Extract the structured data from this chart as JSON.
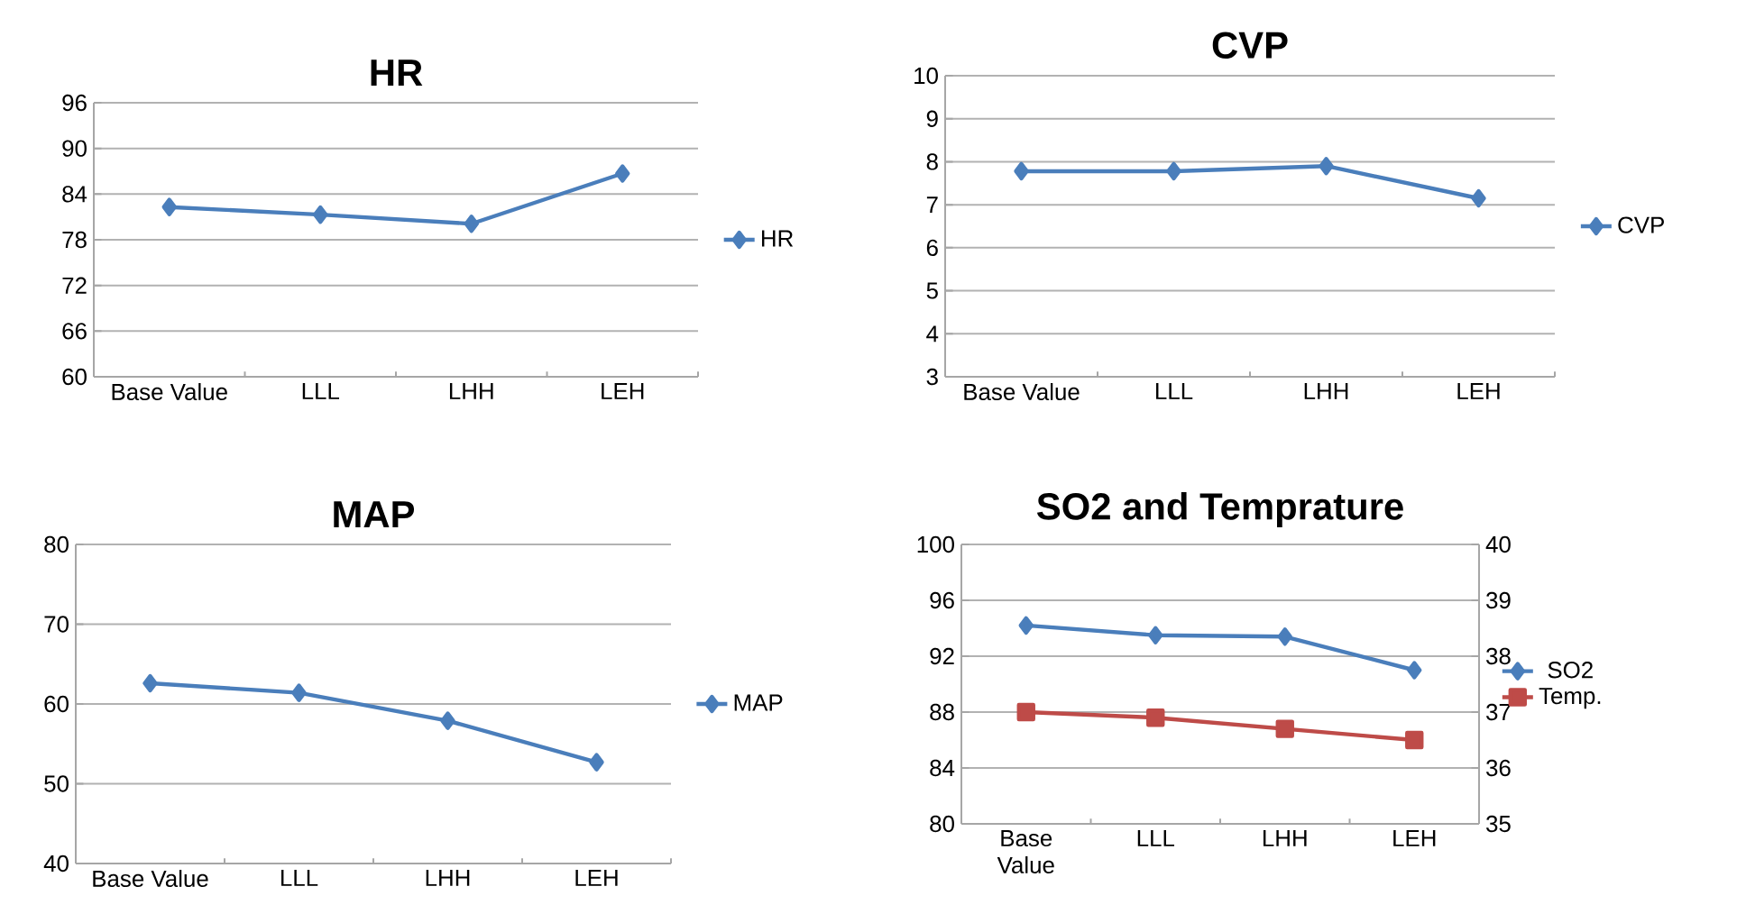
{
  "chart_data": [
    {
      "type": "line",
      "title": "HR",
      "categories": [
        "Base Value",
        "LLL",
        "LHH",
        "LEH"
      ],
      "series": [
        {
          "name": "HR",
          "color": "#4a7ebb",
          "values": [
            82.3,
            81.3,
            80.1,
            86.7
          ]
        }
      ],
      "ylim": [
        60,
        96
      ],
      "yticks": [
        60,
        66,
        72,
        78,
        84,
        90,
        96
      ],
      "grid": "y",
      "legend": "right",
      "marker": "diamond"
    },
    {
      "type": "line",
      "title": "CVP",
      "categories": [
        "Base Value",
        "LLL",
        "LHH",
        "LEH"
      ],
      "series": [
        {
          "name": "CVP",
          "color": "#4a7ebb",
          "values": [
            7.78,
            7.78,
            7.9,
            7.15
          ]
        }
      ],
      "ylim": [
        3,
        10
      ],
      "yticks": [
        3,
        4,
        5,
        6,
        7,
        8,
        9,
        10
      ],
      "grid": "y",
      "legend": "right",
      "marker": "diamond"
    },
    {
      "type": "line",
      "title": "MAP",
      "categories": [
        "Base Value",
        "LLL",
        "LHH",
        "LEH"
      ],
      "series": [
        {
          "name": "MAP",
          "color": "#4a7ebb",
          "values": [
            62.6,
            61.4,
            57.9,
            52.7
          ]
        }
      ],
      "ylim": [
        40,
        80
      ],
      "yticks": [
        40,
        50,
        60,
        70,
        80
      ],
      "grid": "y",
      "legend": "right",
      "marker": "diamond"
    },
    {
      "type": "line",
      "title": "SO2 and Temprature",
      "categories": [
        "Base Value",
        "LLL",
        "LHH",
        "LEH"
      ],
      "series": [
        {
          "name": "SO2",
          "color": "#4a7ebb",
          "values": [
            94.2,
            93.5,
            93.4,
            91.0
          ]
        },
        {
          "name": "Temp.",
          "color": "#be4b48",
          "values": [
            37.0,
            36.9,
            36.7,
            36.5
          ],
          "axis": "y2",
          "marker": "square"
        }
      ],
      "ylim": [
        80,
        100
      ],
      "yticks": [
        80,
        84,
        88,
        92,
        96,
        100
      ],
      "y2lim": [
        35,
        40
      ],
      "y2ticks": [
        35,
        36,
        37,
        38,
        39,
        40
      ],
      "grid": "y",
      "legend": "right",
      "marker": "diamond"
    }
  ]
}
